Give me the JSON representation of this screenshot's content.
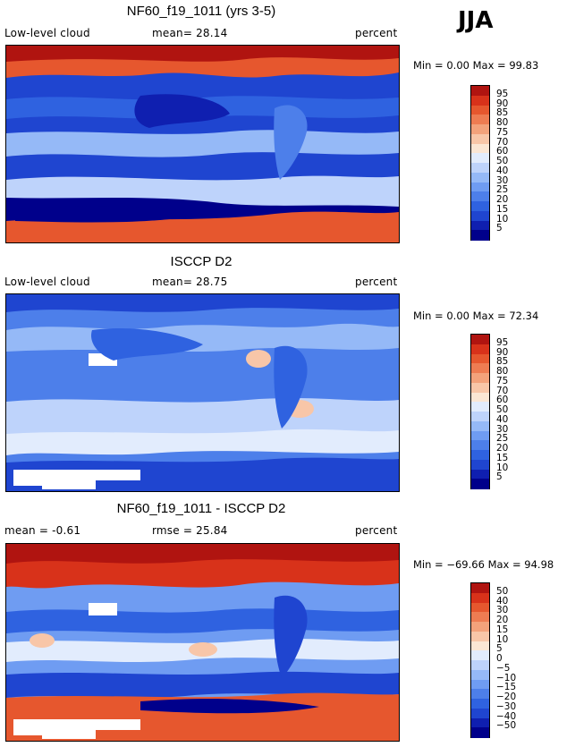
{
  "season": "JJA",
  "colors": {
    "abs": [
      "#00008b",
      "#0f1fb0",
      "#1f45d0",
      "#2f62e0",
      "#4d7fea",
      "#6f9cf2",
      "#95b9f7",
      "#bed3fb",
      "#e2ecfd",
      "#fbe6d4",
      "#f8c6a8",
      "#f3a27b",
      "#ee7c52",
      "#e6572e",
      "#d8321a",
      "#b01410",
      "#8b0000"
    ],
    "diff": [
      "#00008b",
      "#0f1fb0",
      "#1f45d0",
      "#2f62e0",
      "#4d7fea",
      "#6f9cf2",
      "#95b9f7",
      "#bed3fb",
      "#e2ecfd",
      "#fbe6d4",
      "#f8c6a8",
      "#f3a27b",
      "#ee7c52",
      "#e6572e",
      "#d8321a",
      "#b01410",
      "#8b0000"
    ]
  },
  "chart_data": [
    {
      "type": "heatmap",
      "title": "NF60_f19_1011 (yrs 3-5)",
      "left_label": "Low-level cloud",
      "center_label": "mean=  28.14",
      "units": "percent",
      "min_max": "Min =    0.00 Max =  99.83",
      "min": 0.0,
      "max": 99.83,
      "mean": 28.14,
      "colorbar_levels": [
        "95",
        "90",
        "85",
        "80",
        "75",
        "70",
        "60",
        "50",
        "40",
        "30",
        "25",
        "20",
        "15",
        "10",
        "5"
      ]
    },
    {
      "type": "heatmap",
      "title": "ISCCP D2",
      "left_label": "Low-level cloud",
      "center_label": "mean=  28.75",
      "units": "percent",
      "min_max": "Min =    0.00 Max =  72.34",
      "min": 0.0,
      "max": 72.34,
      "mean": 28.75,
      "colorbar_levels": [
        "95",
        "90",
        "85",
        "80",
        "75",
        "70",
        "60",
        "50",
        "40",
        "30",
        "25",
        "20",
        "15",
        "10",
        "5"
      ]
    },
    {
      "type": "heatmap",
      "title": "NF60_f19_1011 - ISCCP D2",
      "left_label": "mean =  -0.61",
      "center_label": "rmse =  25.84",
      "units": "percent",
      "min_max": "Min = −69.66 Max =  94.98",
      "min": -69.66,
      "max": 94.98,
      "mean": -0.61,
      "rmse": 25.84,
      "colorbar_levels": [
        "50",
        "40",
        "30",
        "20",
        "15",
        "10",
        "5",
        "0",
        "−5",
        "−10",
        "−15",
        "−20",
        "−30",
        "−40",
        "−50"
      ]
    }
  ]
}
